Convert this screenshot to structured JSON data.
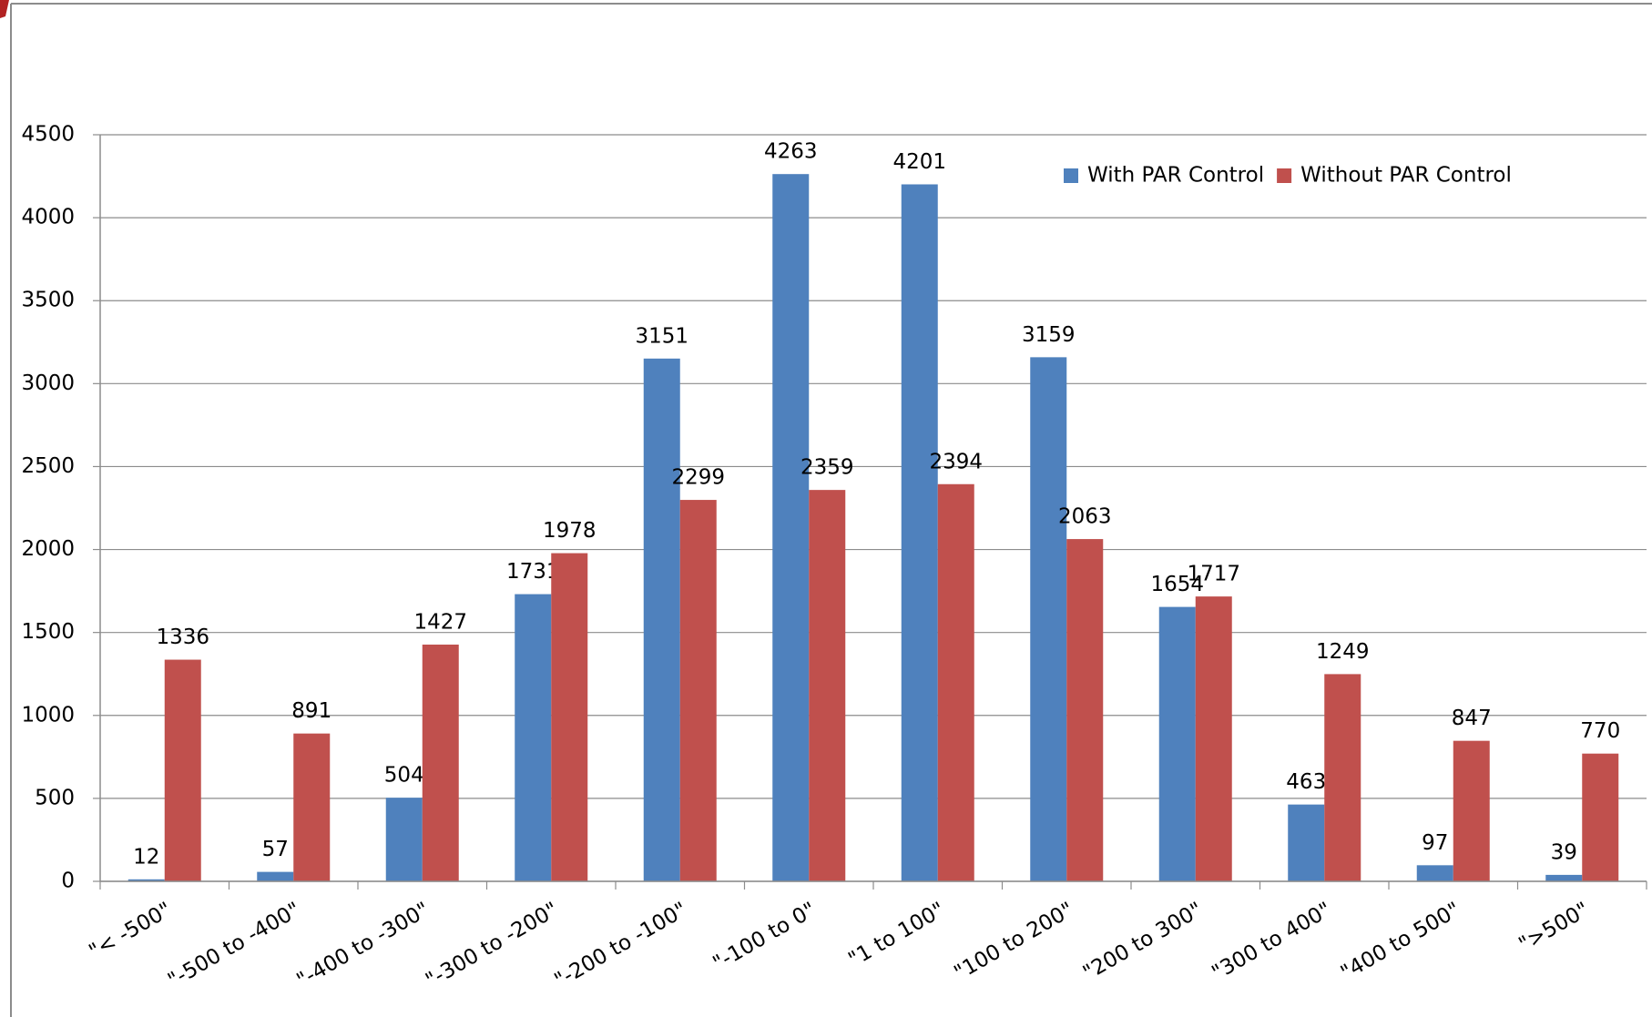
{
  "chart_data": {
    "type": "bar",
    "categories": [
      "\"< -500\"",
      "\"-500 to -400\"",
      "\"-400 to -300\"",
      "\"-300 to -200\"",
      "\"-200 to -100\"",
      "\"-100 to 0\"",
      "\"1 to 100\"",
      "\"100 to 200\"",
      "\"200 to 300\"",
      "\"300 to 400\"",
      "\"400 to 500\"",
      "\">500\""
    ],
    "series": [
      {
        "name": "With PAR Control",
        "color": "#4f81bd",
        "values": [
          12,
          57,
          504,
          1731,
          3151,
          4263,
          4201,
          3159,
          1654,
          463,
          97,
          39
        ]
      },
      {
        "name": "Without PAR Control",
        "color": "#c0504d",
        "values": [
          1336,
          891,
          1427,
          1978,
          2299,
          2359,
          2394,
          2063,
          1717,
          1249,
          847,
          770
        ]
      }
    ],
    "ylim": [
      0,
      4500
    ],
    "yticks": [
      0,
      500,
      1000,
      1500,
      2000,
      2500,
      3000,
      3500,
      4000,
      4500
    ],
    "grid": true,
    "legend": "upper right"
  }
}
